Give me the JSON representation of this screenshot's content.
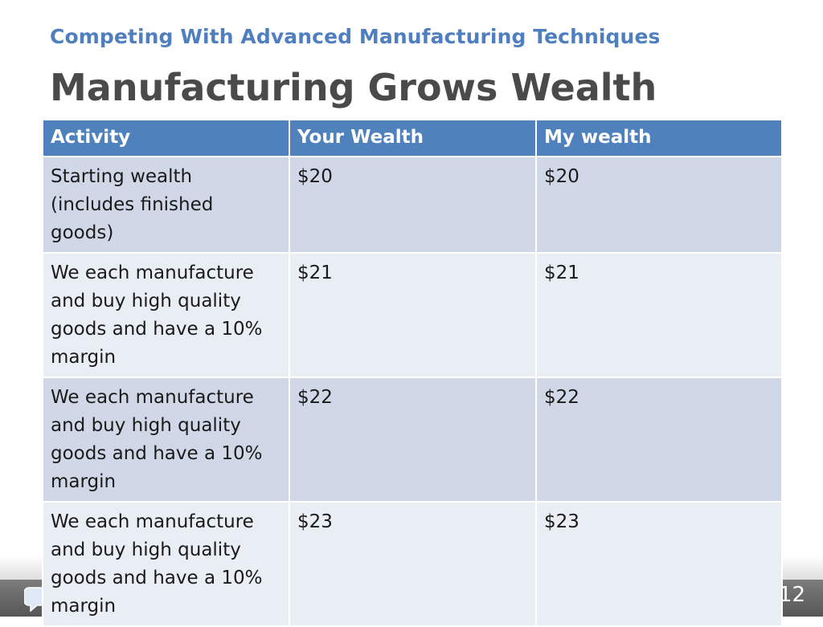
{
  "slide": {
    "subtitle": "Competing With Advanced Manufacturing Techniques",
    "title": "Manufacturing Grows Wealth",
    "page_number": "12"
  },
  "colors": {
    "subtitle": "#4f7fbf",
    "title": "#4a4a4a",
    "table_header": "#4f81bd",
    "row_odd": "#d0d8e8",
    "row_even": "#e9edf4"
  },
  "table": {
    "headers": [
      "Activity",
      "Your Wealth",
      "My wealth"
    ],
    "rows": [
      [
        "Starting wealth (includes finished goods)",
        "$20",
        "$20"
      ],
      [
        "We each manufacture and buy high quality goods and have a 10% margin",
        "$21",
        "$21"
      ],
      [
        "We each manufacture and buy high quality goods and have a 10% margin",
        "$22",
        "$22"
      ],
      [
        "We each manufacture and buy high quality goods and have a 10% margin",
        "$23",
        "$23"
      ]
    ]
  },
  "footer": {
    "logo_icon": "chat-bubble-logo-icon"
  }
}
